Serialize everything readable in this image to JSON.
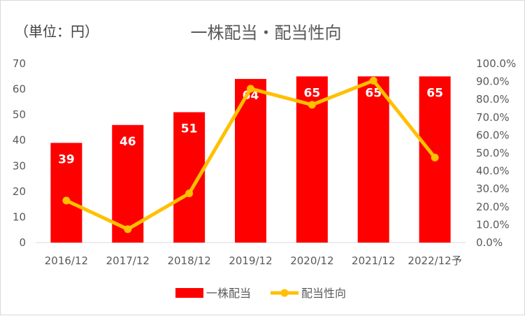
{
  "unit_label": "（単位：円）",
  "chart_data": {
    "type": "bar",
    "title": "一株配当・配当性向",
    "categories": [
      "2016/12",
      "2017/12",
      "2018/12",
      "2019/12",
      "2020/12",
      "2021/12",
      "2022/12予"
    ],
    "series": [
      {
        "name": "一株配当",
        "type": "bar",
        "axis": "left",
        "values": [
          39,
          46,
          51,
          64,
          65,
          65,
          65
        ],
        "color": "#ff0000"
      },
      {
        "name": "配当性向",
        "type": "line",
        "axis": "right",
        "values": [
          23.5,
          7.5,
          27.5,
          86.0,
          77.0,
          90.5,
          47.5
        ],
        "color": "#ffc000"
      }
    ],
    "y_left": {
      "min": 0,
      "max": 70,
      "step": 10,
      "ticks": [
        "0",
        "10",
        "20",
        "30",
        "40",
        "50",
        "60",
        "70"
      ]
    },
    "y_right": {
      "min": 0,
      "max": 100,
      "step": 10,
      "ticks": [
        "0.0%",
        "10.0%",
        "20.0%",
        "30.0%",
        "40.0%",
        "50.0%",
        "60.0%",
        "70.0%",
        "80.0%",
        "90.0%",
        "100.0%"
      ]
    },
    "grid": false,
    "legend_position": "bottom"
  }
}
